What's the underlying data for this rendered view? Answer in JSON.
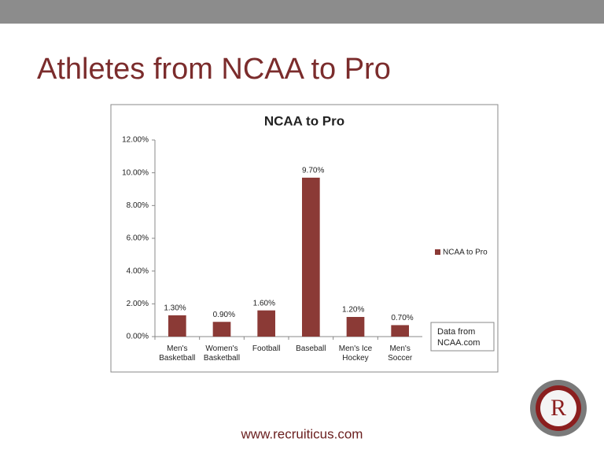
{
  "slide_title": "Athletes from NCAA to Pro",
  "footer": "www.recruiticus.com",
  "chart_data": {
    "type": "bar",
    "title": "NCAA to Pro",
    "categories": [
      "Men's Basketball",
      "Women's Basketball",
      "Football",
      "Baseball",
      "Men's Ice Hockey",
      "Men's Soccer"
    ],
    "series": [
      {
        "name": "NCAA to Pro",
        "color": "#8b3a36",
        "values": [
          1.3,
          0.9,
          1.6,
          9.7,
          1.2,
          0.7
        ],
        "value_labels": [
          "1.30%",
          "0.90%",
          "1.60%",
          "9.70%",
          "1.20%",
          "0.70%"
        ]
      }
    ],
    "ylim": [
      0,
      12
    ],
    "yticks": [
      {
        "value": 0,
        "label": "0.00%"
      },
      {
        "value": 2,
        "label": "2.00%"
      },
      {
        "value": 4,
        "label": "4.00%"
      },
      {
        "value": 6,
        "label": "6.00%"
      },
      {
        "value": 8,
        "label": "8.00%"
      },
      {
        "value": 10,
        "label": "10.00%"
      },
      {
        "value": 12,
        "label": "12.00%"
      }
    ],
    "grid": false,
    "legend": "right",
    "annotation": "Data from NCAA.com"
  }
}
